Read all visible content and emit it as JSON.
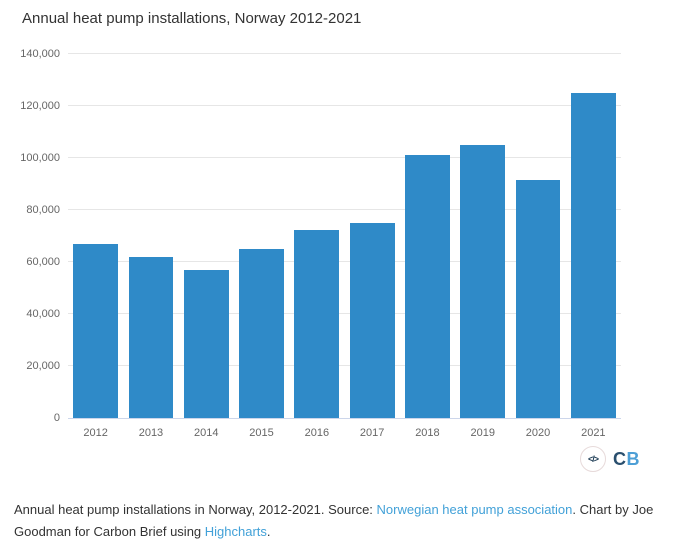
{
  "chart_data": {
    "type": "bar",
    "title": "Annual heat pump installations, Norway 2012-2021",
    "categories": [
      "2012",
      "2013",
      "2014",
      "2015",
      "2016",
      "2017",
      "2018",
      "2019",
      "2020",
      "2021"
    ],
    "values": [
      67000,
      62000,
      57000,
      65000,
      72500,
      75000,
      101000,
      105000,
      91500,
      125000
    ],
    "xlabel": "",
    "ylabel": "",
    "ylim": [
      0,
      140000
    ],
    "ytick_interval": 20000,
    "ytick_labels": [
      "0",
      "20,000",
      "40,000",
      "60,000",
      "80,000",
      "100,000",
      "120,000",
      "140,000"
    ],
    "grid": true,
    "legend": false,
    "bar_color": "#2f8ac8",
    "gridline_color": "#e6e6e6",
    "axis_line_color": "#ccd6eb",
    "axis_label_color": "#666666"
  },
  "branding": {
    "embed_icon": "</>",
    "logo_c": "C",
    "logo_b": "B",
    "logo_c_color": "#2a4f6e",
    "logo_b_color": "#4d9fd6"
  },
  "caption": {
    "text_before_source": "Annual heat pump installations in Norway, 2012-2021. Source: ",
    "source_link": "Norwegian heat pump association",
    "text_middle": ". Chart by Joe Goodman for Carbon Brief using ",
    "highcharts_link": "Highcharts",
    "text_end": ".",
    "link_color": "#42a1d8"
  }
}
